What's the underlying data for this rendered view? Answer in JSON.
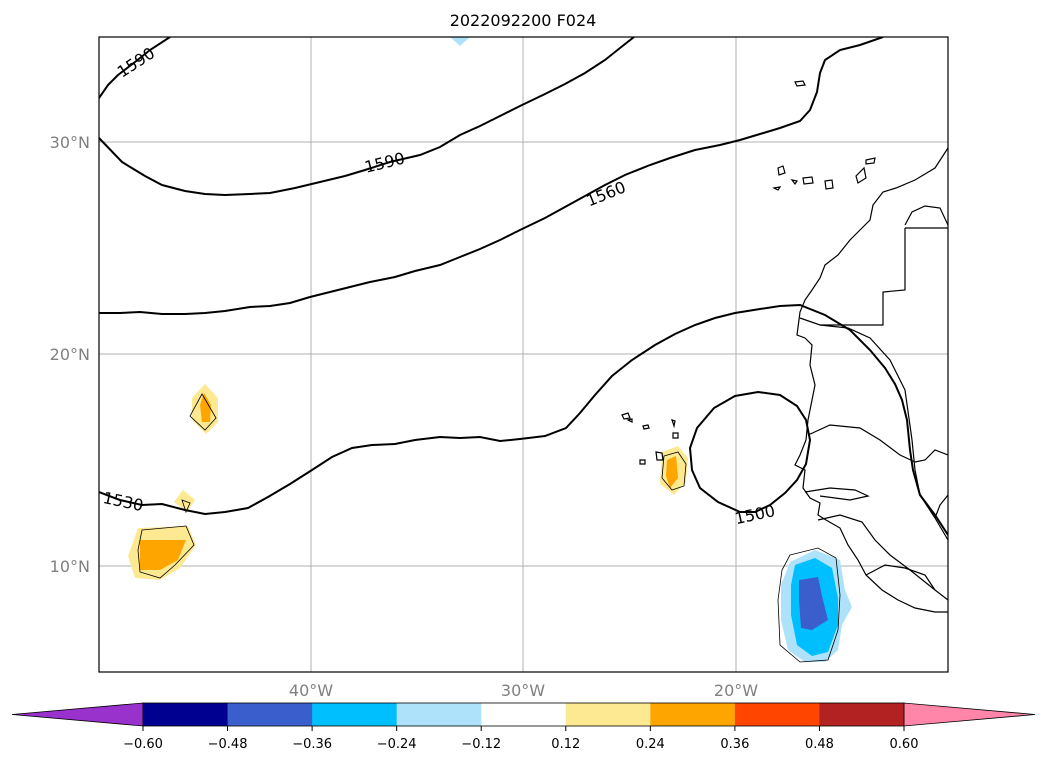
{
  "title": "2022092200 F024",
  "map": {
    "lat_labels": [
      "30°N",
      "20°N",
      "10°N"
    ],
    "lon_labels": [
      "40°W",
      "30°W",
      "20°W"
    ],
    "contour_labels": [
      "1590",
      "1590",
      "1560",
      "1530",
      "1500"
    ]
  },
  "colorbar": {
    "ticks": [
      "−0.60",
      "−0.48",
      "−0.36",
      "−0.24",
      "−0.12",
      "0.12",
      "0.24",
      "0.36",
      "0.48",
      "0.60"
    ],
    "colors": {
      "under": "#9932cc",
      "bins": [
        "#000090",
        "#3a5fcd",
        "#00bfff",
        "#aee2fa",
        "#ffffff",
        "#fde992",
        "#ffa500",
        "#ff4500",
        "#b22222"
      ],
      "over": "#ff86a8"
    }
  },
  "colors": {
    "orange": "#ffa500",
    "yellow": "#fde992",
    "cyan": "#00bfff",
    "light_blue": "#aee2fa",
    "royal_blue": "#3a5fcd"
  }
}
